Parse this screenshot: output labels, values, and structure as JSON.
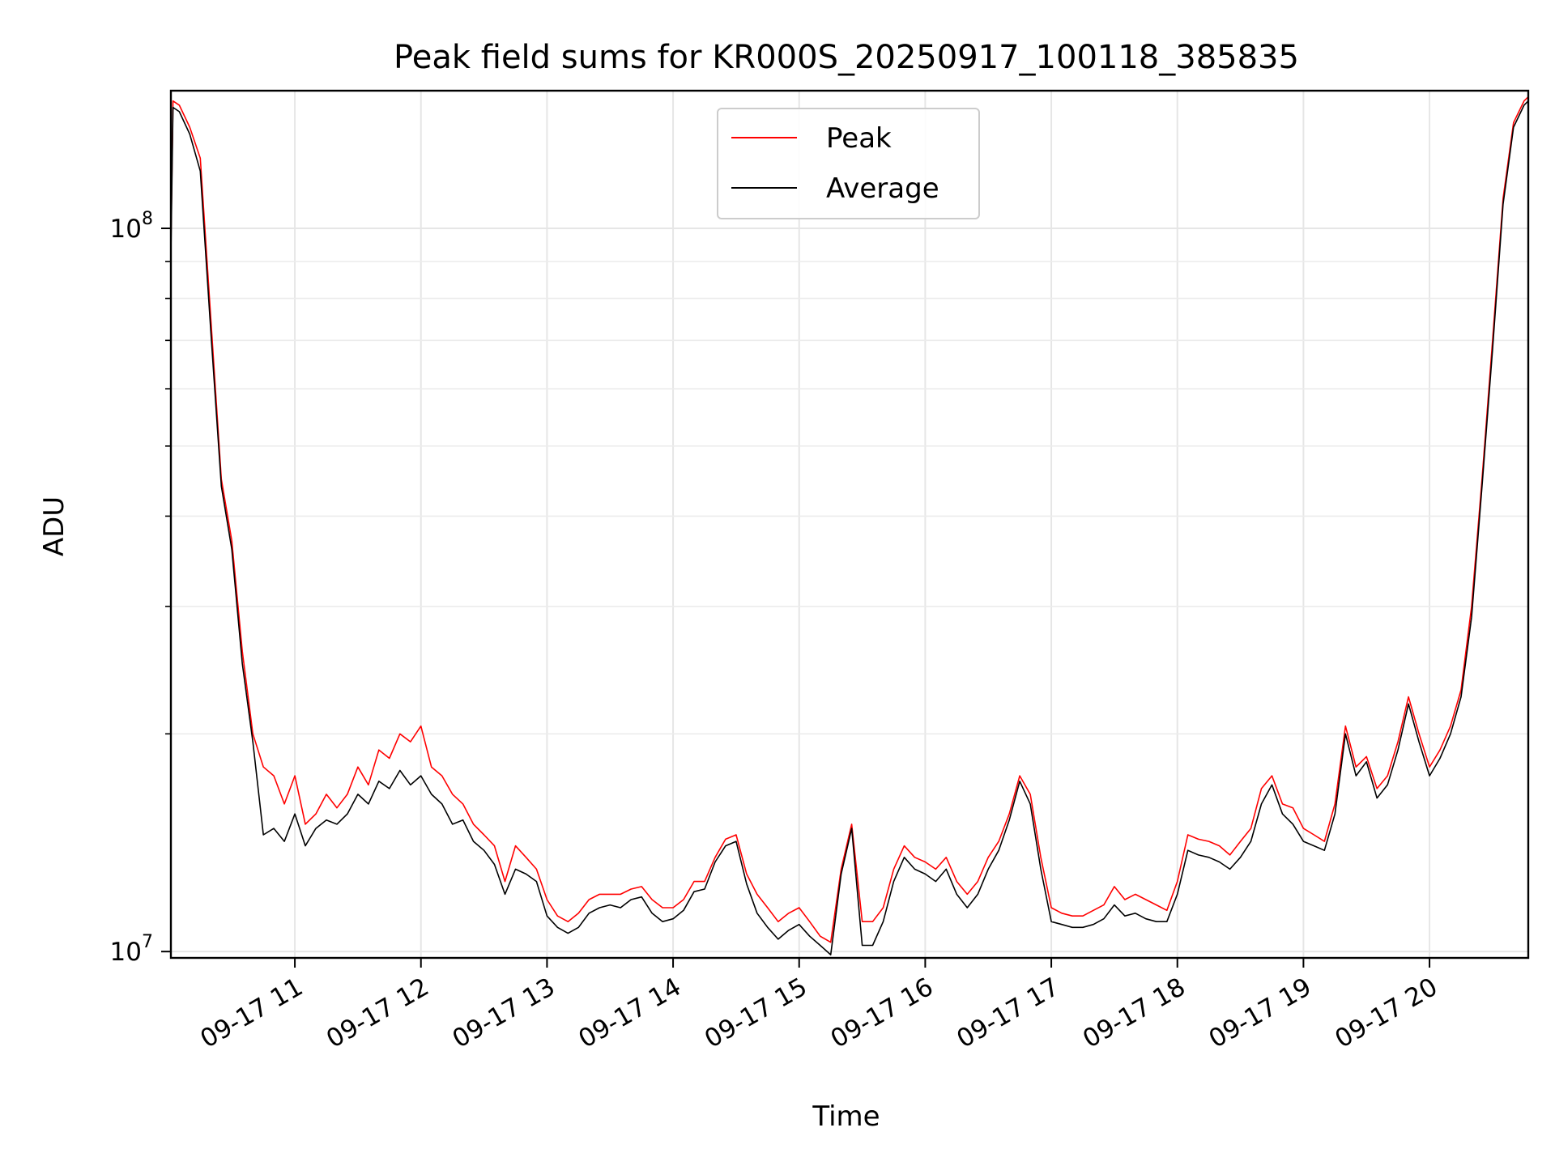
{
  "chart_data": {
    "type": "line",
    "title": "Peak field sums for KR000S_20250917_100118_385835",
    "xlabel": "Time",
    "ylabel": "ADU",
    "xscale": "time",
    "yscale": "log",
    "xlim": [
      "2025-09-17 10:01",
      "2025-09-17 20:47"
    ],
    "ylim": [
      9800000,
      155000000
    ],
    "grid": true,
    "legend_position": "top-center",
    "x_ticks": [
      {
        "value": "2025-09-17 11:00",
        "label": "09-17 11"
      },
      {
        "value": "2025-09-17 12:00",
        "label": "09-17 12"
      },
      {
        "value": "2025-09-17 13:00",
        "label": "09-17 13"
      },
      {
        "value": "2025-09-17 14:00",
        "label": "09-17 14"
      },
      {
        "value": "2025-09-17 15:00",
        "label": "09-17 15"
      },
      {
        "value": "2025-09-17 16:00",
        "label": "09-17 16"
      },
      {
        "value": "2025-09-17 17:00",
        "label": "09-17 17"
      },
      {
        "value": "2025-09-17 18:00",
        "label": "09-17 18"
      },
      {
        "value": "2025-09-17 19:00",
        "label": "09-17 19"
      },
      {
        "value": "2025-09-17 20:00",
        "label": "09-17 20"
      }
    ],
    "y_ticks": [
      {
        "value": 10000000,
        "base": "10",
        "exp": "7"
      },
      {
        "value": 100000000,
        "base": "10",
        "exp": "8"
      }
    ],
    "x": [
      "10:01",
      "10:02",
      "10:05",
      "10:10",
      "10:15",
      "10:20",
      "10:25",
      "10:30",
      "10:35",
      "10:40",
      "10:45",
      "10:50",
      "10:55",
      "11:00",
      "11:05",
      "11:10",
      "11:15",
      "11:20",
      "11:25",
      "11:30",
      "11:35",
      "11:40",
      "11:45",
      "11:50",
      "11:55",
      "12:00",
      "12:05",
      "12:10",
      "12:15",
      "12:20",
      "12:25",
      "12:30",
      "12:35",
      "12:40",
      "12:45",
      "12:50",
      "12:55",
      "13:00",
      "13:05",
      "13:10",
      "13:15",
      "13:20",
      "13:25",
      "13:30",
      "13:35",
      "13:40",
      "13:45",
      "13:50",
      "13:55",
      "14:00",
      "14:05",
      "14:10",
      "14:15",
      "14:20",
      "14:25",
      "14:30",
      "14:35",
      "14:40",
      "14:45",
      "14:50",
      "14:55",
      "15:00",
      "15:05",
      "15:10",
      "15:15",
      "15:20",
      "15:25",
      "15:30",
      "15:35",
      "15:40",
      "15:45",
      "15:50",
      "15:55",
      "16:00",
      "16:05",
      "16:10",
      "16:15",
      "16:20",
      "16:25",
      "16:30",
      "16:35",
      "16:40",
      "16:45",
      "16:50",
      "16:55",
      "17:00",
      "17:05",
      "17:10",
      "17:15",
      "17:20",
      "17:25",
      "17:30",
      "17:35",
      "17:40",
      "17:45",
      "17:50",
      "17:55",
      "18:00",
      "18:05",
      "18:10",
      "18:15",
      "18:20",
      "18:25",
      "18:30",
      "18:35",
      "18:40",
      "18:45",
      "18:50",
      "18:55",
      "19:00",
      "19:05",
      "19:10",
      "19:15",
      "19:20",
      "19:25",
      "19:30",
      "19:35",
      "19:40",
      "19:45",
      "19:50",
      "19:55",
      "20:00",
      "20:05",
      "20:10",
      "20:15",
      "20:20",
      "20:25",
      "20:30",
      "20:35",
      "20:40",
      "20:45",
      "20:47"
    ],
    "series": [
      {
        "name": "Peak",
        "color": "#ff0000",
        "values": [
          95000000,
          150000000,
          148000000,
          138000000,
          125000000,
          75000000,
          45000000,
          37000000,
          26000000,
          20000000,
          18000000,
          17500000,
          16000000,
          17500000,
          15000000,
          15500000,
          16500000,
          15800000,
          16500000,
          18000000,
          17000000,
          19000000,
          18500000,
          20000000,
          19500000,
          20500000,
          18000000,
          17500000,
          16500000,
          16000000,
          15000000,
          14500000,
          14000000,
          12500000,
          14000000,
          13500000,
          13000000,
          11800000,
          11200000,
          11000000,
          11300000,
          11800000,
          12000000,
          12000000,
          12000000,
          12200000,
          12300000,
          11800000,
          11500000,
          11500000,
          11800000,
          12500000,
          12500000,
          13500000,
          14300000,
          14500000,
          12800000,
          12000000,
          11500000,
          11000000,
          11300000,
          11500000,
          11000000,
          10500000,
          10300000,
          13000000,
          15000000,
          11000000,
          11000000,
          11500000,
          13000000,
          14000000,
          13500000,
          13300000,
          13000000,
          13500000,
          12500000,
          12000000,
          12500000,
          13500000,
          14200000,
          15500000,
          17500000,
          16500000,
          13500000,
          11500000,
          11300000,
          11200000,
          11200000,
          11400000,
          11600000,
          12300000,
          11800000,
          12000000,
          11800000,
          11600000,
          11400000,
          12500000,
          14500000,
          14300000,
          14200000,
          14000000,
          13600000,
          14200000,
          14800000,
          16800000,
          17500000,
          16000000,
          15800000,
          14800000,
          14500000,
          14200000,
          16000000,
          20500000,
          18000000,
          18600000,
          16800000,
          17500000,
          19500000,
          22500000,
          20000000,
          18000000,
          19000000,
          20500000,
          23000000,
          30000000,
          45000000,
          70000000,
          110000000,
          140000000,
          150000000,
          152000000
        ]
      },
      {
        "name": "Average",
        "color": "#000000",
        "values": [
          92000000,
          147000000,
          145000000,
          135000000,
          120000000,
          72000000,
          44000000,
          36000000,
          25000000,
          19500000,
          14500000,
          14800000,
          14200000,
          15500000,
          14000000,
          14800000,
          15200000,
          15000000,
          15500000,
          16500000,
          16000000,
          17200000,
          16800000,
          17800000,
          17000000,
          17500000,
          16500000,
          16000000,
          15000000,
          15200000,
          14200000,
          13800000,
          13200000,
          12000000,
          13000000,
          12800000,
          12500000,
          11200000,
          10800000,
          10600000,
          10800000,
          11300000,
          11500000,
          11600000,
          11500000,
          11800000,
          11900000,
          11300000,
          11000000,
          11100000,
          11400000,
          12100000,
          12200000,
          13300000,
          14000000,
          14200000,
          12400000,
          11300000,
          10800000,
          10400000,
          10700000,
          10900000,
          10500000,
          10200000,
          9900000,
          12800000,
          14800000,
          10200000,
          10200000,
          11000000,
          12500000,
          13500000,
          13000000,
          12800000,
          12500000,
          13000000,
          12000000,
          11500000,
          12000000,
          13000000,
          13800000,
          15200000,
          17200000,
          16000000,
          13000000,
          11000000,
          10900000,
          10800000,
          10800000,
          10900000,
          11100000,
          11600000,
          11200000,
          11300000,
          11100000,
          11000000,
          11000000,
          12000000,
          13800000,
          13600000,
          13500000,
          13300000,
          13000000,
          13500000,
          14200000,
          16000000,
          17000000,
          15500000,
          15000000,
          14200000,
          14000000,
          13800000,
          15500000,
          20000000,
          17500000,
          18300000,
          16300000,
          17000000,
          19000000,
          22000000,
          19500000,
          17500000,
          18500000,
          20000000,
          22500000,
          29000000,
          44000000,
          68000000,
          108000000,
          138000000,
          148000000,
          150000000
        ]
      }
    ]
  }
}
